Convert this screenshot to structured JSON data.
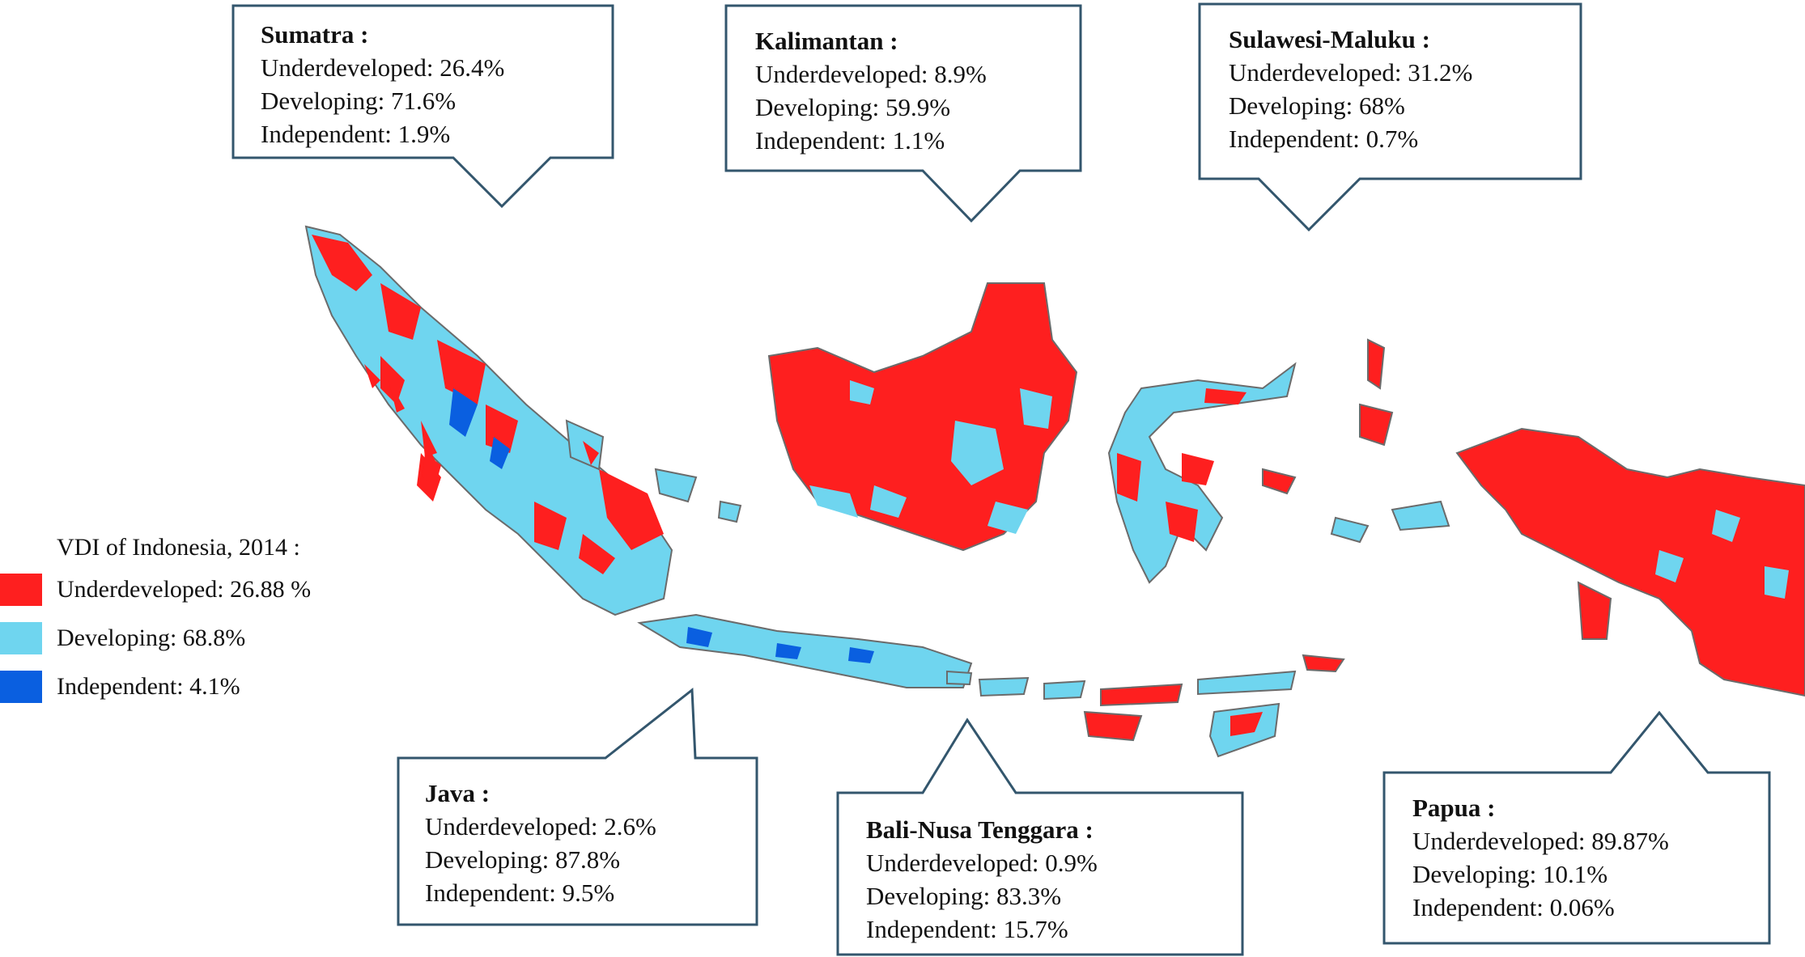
{
  "legend": {
    "title": "VDI of Indonesia, 2014 :",
    "items": [
      {
        "label": "Underdeveloped: 26.88 %",
        "color": "#fe1f1f"
      },
      {
        "label": "Developing: 68.8%",
        "color": "#6fd5ef"
      },
      {
        "label": "Independent: 4.1%",
        "color": "#0a5fe0"
      }
    ]
  },
  "regions": {
    "sumatra": {
      "title": "Sumatra :",
      "underdeveloped": "Underdeveloped: 26.4%",
      "developing": "Developing: 71.6%",
      "independent": "Independent: 1.9%"
    },
    "kalimantan": {
      "title": "Kalimantan :",
      "underdeveloped": "Underdeveloped: 8.9%",
      "developing": "Developing: 59.9%",
      "independent": "Independent: 1.1%"
    },
    "sulawesi": {
      "title": "Sulawesi-Maluku :",
      "underdeveloped": "Underdeveloped: 31.2%",
      "developing": "Developing: 68%",
      "independent": "Independent: 0.7%"
    },
    "java": {
      "title": "Java :",
      "underdeveloped": "Underdeveloped: 2.6%",
      "developing": "Developing: 87.8%",
      "independent": "Independent: 9.5%"
    },
    "bali": {
      "title": "Bali-Nusa Tenggara :",
      "underdeveloped": "Underdeveloped: 0.9%",
      "developing": "Developing: 83.3%",
      "independent": "Independent: 15.7%"
    },
    "papua": {
      "title": "Papua :",
      "underdeveloped": "Underdeveloped: 89.87%",
      "developing": "Developing: 10.1%",
      "independent": "Independent: 0.06%"
    }
  }
}
